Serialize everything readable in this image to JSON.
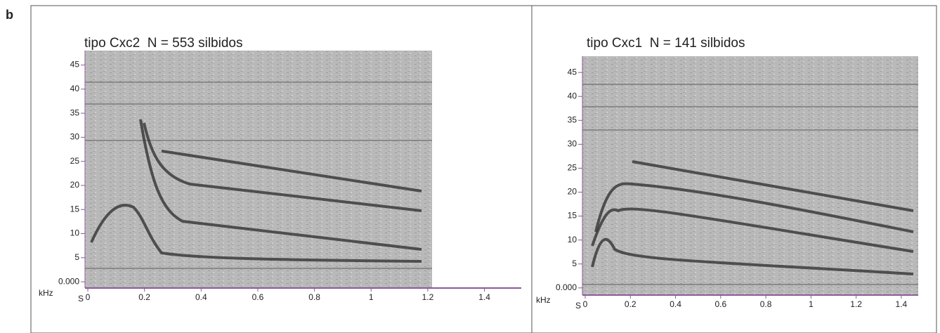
{
  "panel_label": "b",
  "chart_data": [
    {
      "type": "spectrogram",
      "title": "tipo Cxc2  N = 553 silbidos",
      "x_unit": "S",
      "y_unit": "kHz",
      "xlim": [
        0,
        1.53
      ],
      "ylim": [
        -1.3,
        48
      ],
      "xticks": [
        0,
        0.2,
        0.4,
        0.6,
        0.8,
        1,
        1.2,
        1.4
      ],
      "yticks": [
        {
          "value": 0,
          "label": "0.000"
        },
        5,
        10,
        15,
        20,
        25,
        30,
        35,
        40,
        45
      ]
    },
    {
      "type": "spectrogram",
      "title": "tipo Cxc1  N = 141 silbidos",
      "x_unit": "S",
      "y_unit": "kHz",
      "xlim": [
        0,
        1.475
      ],
      "ylim": [
        -1.5,
        48.4
      ],
      "xticks": [
        0,
        0.2,
        0.4,
        0.6,
        0.8,
        1,
        1.2,
        1.4
      ],
      "yticks": [
        {
          "value": 0,
          "label": "0.000"
        },
        5,
        10,
        15,
        20,
        25,
        30,
        35,
        40,
        45
      ]
    }
  ]
}
